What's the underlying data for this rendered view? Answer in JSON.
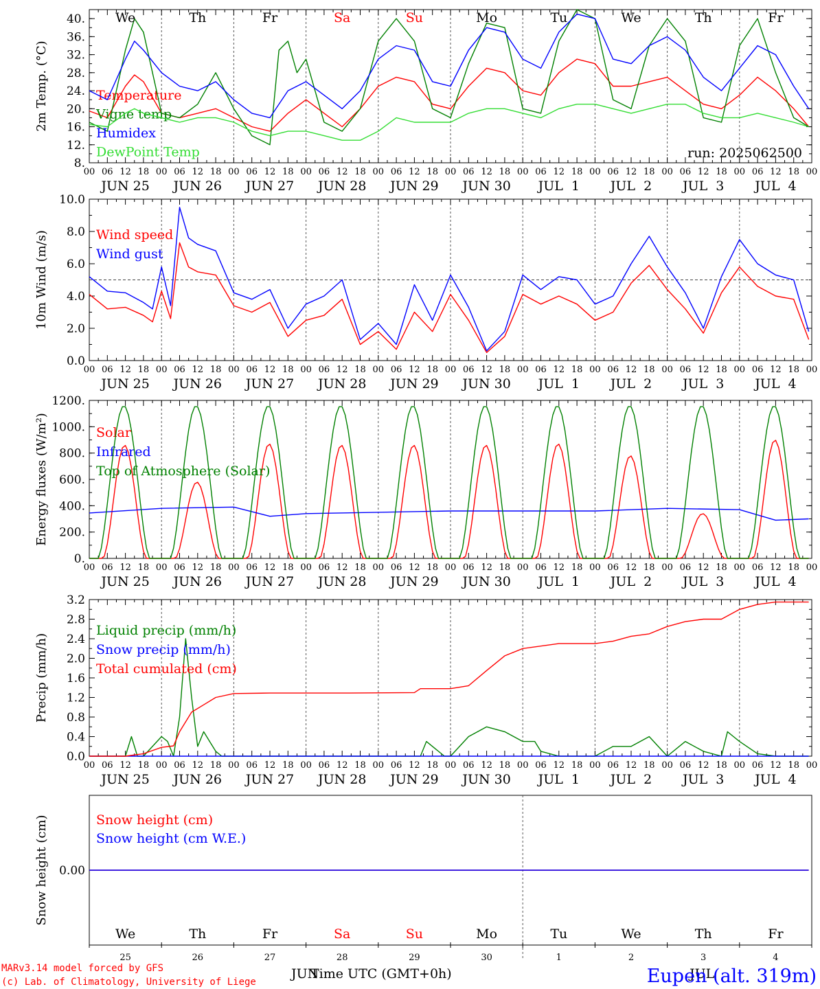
{
  "colors": {
    "red": "#ff0000",
    "green": "#008000",
    "blue": "#0000ff",
    "lightgreen": "#33dd33",
    "black": "#000000",
    "grid": "#555555"
  },
  "x_axis": {
    "hour_ticks": [
      "00",
      "06",
      "12",
      "18"
    ],
    "dates": [
      "JUN 25",
      "JUN 26",
      "JUN 27",
      "JUN 28",
      "JUN 29",
      "JUN 30",
      "JUL  1",
      "JUL  2",
      "JUL  3",
      "JUL  4"
    ],
    "weekdays": [
      "We",
      "Th",
      "Fr",
      "Sa",
      "Su",
      "Mo",
      "Tu",
      "We",
      "Th",
      "Fr"
    ],
    "weekday_colors": [
      "black",
      "black",
      "black",
      "red",
      "red",
      "black",
      "black",
      "black",
      "black",
      "black"
    ],
    "day_numbers": [
      "25",
      "26",
      "27",
      "28",
      "29",
      "30",
      "1",
      "2",
      "3",
      "4"
    ]
  },
  "chart_data": [
    {
      "type": "line",
      "ylabel": "2m Temp. (°C)",
      "ylim": [
        8,
        42
      ],
      "yticks": [
        "8.",
        "12.",
        "16.",
        "20.",
        "24.",
        "28.",
        "32.",
        "36.",
        "40."
      ],
      "annotation": "run: 2025062500",
      "series": [
        {
          "name": "Temperature",
          "color": "red",
          "x": [
            0,
            6,
            12,
            15,
            18,
            24,
            30,
            36,
            42,
            48,
            54,
            60,
            66,
            72,
            78,
            84,
            90,
            96,
            102,
            108,
            114,
            120,
            126,
            132,
            138,
            144,
            150,
            156,
            162,
            168,
            174,
            180,
            186,
            192,
            198,
            204,
            210,
            216,
            222,
            228,
            234,
            239
          ],
          "values": [
            19.5,
            18,
            25,
            27.5,
            26,
            19,
            18,
            19,
            20,
            18,
            16,
            15,
            19,
            22,
            19,
            16,
            20,
            25,
            27,
            26,
            21,
            20,
            25,
            29,
            28,
            24,
            23,
            28,
            31,
            30,
            25,
            25,
            26,
            27,
            24,
            21,
            20,
            23,
            27,
            24,
            20,
            16
          ]
        },
        {
          "name": "Vigne temp",
          "color": "green",
          "x": [
            0,
            6,
            12,
            15,
            18,
            24,
            30,
            36,
            42,
            48,
            54,
            60,
            63,
            66,
            69,
            72,
            78,
            84,
            90,
            96,
            102,
            108,
            114,
            120,
            126,
            132,
            138,
            144,
            150,
            156,
            162,
            168,
            174,
            180,
            186,
            192,
            198,
            204,
            210,
            216,
            222,
            228,
            234,
            239
          ],
          "values": [
            17,
            15,
            33,
            40,
            37,
            19,
            18,
            21,
            28,
            20,
            14,
            12,
            33,
            35,
            28,
            31,
            17,
            15,
            20,
            35,
            40,
            35,
            20,
            18,
            30,
            39,
            38,
            20,
            19,
            35,
            42,
            40,
            22,
            20,
            34,
            40,
            35,
            18,
            17,
            34,
            40,
            28,
            18,
            16
          ]
        },
        {
          "name": "Humidex",
          "color": "blue",
          "x": [
            0,
            6,
            12,
            15,
            18,
            24,
            30,
            36,
            42,
            48,
            54,
            60,
            66,
            72,
            78,
            84,
            90,
            96,
            102,
            108,
            114,
            120,
            126,
            132,
            138,
            144,
            150,
            156,
            162,
            168,
            174,
            180,
            186,
            192,
            198,
            204,
            210,
            216,
            222,
            228,
            234,
            239
          ],
          "values": [
            24,
            22,
            31,
            35,
            33,
            28,
            25,
            24,
            26,
            22,
            19,
            18,
            24,
            26,
            23,
            20,
            24,
            31,
            34,
            33,
            26,
            25,
            33,
            38,
            37,
            31,
            29,
            37,
            41,
            40,
            31,
            30,
            34,
            36,
            33,
            27,
            24,
            29,
            34,
            32,
            25,
            20
          ]
        },
        {
          "name": "DewPoint Temp",
          "color": "lightgreen",
          "x": [
            0,
            6,
            12,
            15,
            18,
            24,
            30,
            36,
            42,
            48,
            54,
            60,
            66,
            72,
            78,
            84,
            90,
            96,
            102,
            108,
            114,
            120,
            126,
            132,
            138,
            144,
            150,
            156,
            162,
            168,
            174,
            180,
            186,
            192,
            198,
            204,
            210,
            216,
            222,
            228,
            234,
            239
          ],
          "values": [
            16.5,
            16,
            19,
            20,
            19,
            18,
            17,
            18,
            18,
            17,
            15,
            14,
            15,
            15,
            14,
            13,
            13,
            15,
            18,
            17,
            17,
            17,
            19,
            20,
            20,
            19,
            18,
            20,
            21,
            21,
            20,
            19,
            20,
            21,
            21,
            19,
            18,
            18,
            19,
            18,
            17,
            16
          ]
        }
      ]
    },
    {
      "type": "line",
      "ylabel": "10m Wind (m/s)",
      "ylim": [
        0,
        10
      ],
      "yticks": [
        "0.0",
        "2.0",
        "4.0",
        "6.0",
        "8.0",
        "10.0"
      ],
      "reference_line": 5.0,
      "series": [
        {
          "name": "Wind speed",
          "color": "red",
          "x": [
            0,
            6,
            12,
            18,
            21,
            24,
            27,
            30,
            33,
            36,
            42,
            48,
            54,
            60,
            66,
            72,
            78,
            84,
            90,
            96,
            102,
            108,
            114,
            120,
            126,
            132,
            138,
            144,
            150,
            156,
            162,
            168,
            174,
            180,
            186,
            192,
            198,
            204,
            210,
            216,
            222,
            228,
            234,
            239
          ],
          "values": [
            4.1,
            3.2,
            3.3,
            2.8,
            2.4,
            4.3,
            2.6,
            7.3,
            5.8,
            5.5,
            5.3,
            3.4,
            3.0,
            3.6,
            1.5,
            2.5,
            2.8,
            3.8,
            1.0,
            1.8,
            0.7,
            3.0,
            1.8,
            4.1,
            2.5,
            0.5,
            1.5,
            4.1,
            3.5,
            4.0,
            3.5,
            2.5,
            3.0,
            4.8,
            5.9,
            4.4,
            3.2,
            1.7,
            4.2,
            5.8,
            4.6,
            4.0,
            3.8,
            1.3
          ]
        },
        {
          "name": "Wind gust",
          "color": "blue",
          "x": [
            0,
            6,
            12,
            18,
            21,
            24,
            27,
            30,
            33,
            36,
            42,
            48,
            54,
            60,
            66,
            72,
            78,
            84,
            90,
            96,
            102,
            108,
            114,
            120,
            126,
            132,
            138,
            144,
            150,
            156,
            162,
            168,
            174,
            180,
            186,
            192,
            198,
            204,
            210,
            216,
            222,
            228,
            234,
            239
          ],
          "values": [
            5.2,
            4.3,
            4.2,
            3.6,
            3.2,
            5.8,
            3.4,
            9.5,
            7.6,
            7.2,
            6.8,
            4.2,
            3.8,
            4.4,
            2.0,
            3.5,
            4.0,
            5.0,
            1.3,
            2.3,
            1.0,
            4.7,
            2.5,
            5.3,
            3.3,
            0.6,
            1.8,
            5.3,
            4.4,
            5.2,
            5.0,
            3.5,
            4.0,
            6.0,
            7.7,
            5.8,
            4.2,
            2.0,
            5.2,
            7.5,
            6.0,
            5.3,
            5.0,
            1.8
          ]
        }
      ]
    },
    {
      "type": "line",
      "ylabel": "Energy fluxes (W/m²)",
      "ylim": [
        0,
        1200
      ],
      "yticks": [
        "0.",
        "200.",
        "400.",
        "600.",
        "800.",
        "1000.",
        "1200."
      ],
      "series": [
        {
          "name": "Solar",
          "color": "red",
          "daily_peaks": [
            860,
            580,
            870,
            860,
            860,
            860,
            870,
            780,
            340,
            900
          ]
        },
        {
          "name": "Infrared",
          "color": "blue",
          "x": [
            0,
            24,
            48,
            60,
            72,
            96,
            120,
            144,
            168,
            192,
            216,
            228,
            239
          ],
          "values": [
            345,
            380,
            390,
            320,
            340,
            350,
            360,
            360,
            360,
            380,
            370,
            290,
            300
          ]
        },
        {
          "name": "Top of Atmosphere (Solar)",
          "color": "green",
          "daily_peaks": [
            1160,
            1160,
            1160,
            1160,
            1160,
            1160,
            1160,
            1160,
            1160,
            1160
          ]
        }
      ]
    },
    {
      "type": "line",
      "ylabel": "Precip (mm/h)",
      "ylim": [
        0,
        3.2
      ],
      "yticks": [
        "0.0",
        "0.4",
        "0.8",
        "1.2",
        "1.6",
        "2.0",
        "2.4",
        "2.8",
        "3.2"
      ],
      "series": [
        {
          "name": "Liquid precip (mm/h)",
          "color": "green",
          "x": [
            0,
            12,
            14,
            16,
            18,
            24,
            26,
            28,
            30,
            32,
            34,
            36,
            38,
            40,
            42,
            44,
            48,
            110,
            112,
            114,
            118,
            120,
            126,
            132,
            138,
            144,
            148,
            150,
            156,
            168,
            174,
            180,
            186,
            192,
            198,
            204,
            210,
            212,
            214,
            216,
            222,
            228,
            234,
            239
          ],
          "values": [
            0,
            0,
            0.4,
            0,
            0,
            0.4,
            0.3,
            0,
            0.8,
            2.4,
            1.2,
            0.2,
            0.5,
            0.3,
            0.1,
            0,
            0,
            0,
            0.3,
            0.2,
            0,
            0,
            0.4,
            0.6,
            0.5,
            0.3,
            0.3,
            0.1,
            0,
            0,
            0.2,
            0.2,
            0.4,
            0,
            0.3,
            0.1,
            0,
            0.5,
            0.4,
            0.3,
            0.05,
            0,
            0,
            0
          ]
        },
        {
          "name": "Snow precip (mm/h)",
          "color": "blue",
          "x": [
            0,
            239
          ],
          "values": [
            0,
            0
          ]
        },
        {
          "name": "Total cumulated (cm)",
          "color": "red",
          "x": [
            0,
            12,
            18,
            24,
            28,
            30,
            34,
            38,
            42,
            48,
            60,
            84,
            108,
            110,
            120,
            126,
            132,
            138,
            144,
            156,
            168,
            174,
            180,
            186,
            192,
            198,
            204,
            210,
            216,
            222,
            228,
            239
          ],
          "values": [
            0,
            0,
            0.05,
            0.18,
            0.21,
            0.5,
            0.9,
            1.05,
            1.2,
            1.28,
            1.29,
            1.29,
            1.3,
            1.38,
            1.38,
            1.44,
            1.75,
            2.05,
            2.2,
            2.3,
            2.3,
            2.35,
            2.45,
            2.5,
            2.65,
            2.75,
            2.8,
            2.8,
            3.0,
            3.1,
            3.15,
            3.15
          ]
        }
      ]
    },
    {
      "type": "line",
      "ylabel": "Snow height (cm)",
      "yticks": [
        "0.00"
      ],
      "series": [
        {
          "name": "Snow height (cm)",
          "color": "red",
          "x": [
            0,
            239
          ],
          "values": [
            0,
            0
          ]
        },
        {
          "name": "Snow height (cm W.E.)",
          "color": "blue",
          "x": [
            0,
            239
          ],
          "values": [
            0,
            0
          ]
        }
      ]
    }
  ],
  "footer": {
    "credit1": "MARv3.14 model forced by GFS",
    "credit2": "(c) Lab. of Climatology, University of Liege",
    "xlabel": "Time UTC (GMT+0h)",
    "month_left": "JUN",
    "month_right": "JUL",
    "station": "Eupen (alt. 319m)"
  }
}
